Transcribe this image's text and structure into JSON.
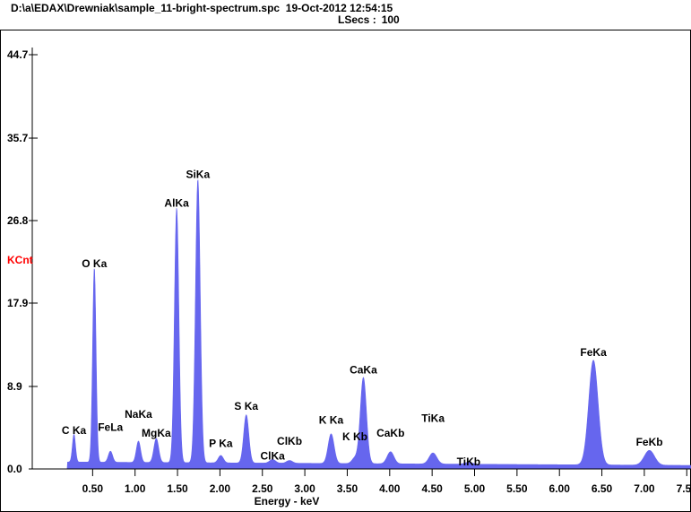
{
  "header": {
    "file_path": "D:\\a\\EDAX\\Drewniak\\sample_11-bright-spectrum.spc",
    "datetime": "19-Oct-2012 12:54:15",
    "lsecs_label": "LSecs :",
    "lsecs_value": "100"
  },
  "colors": {
    "spectrum_fill": "#6666ee",
    "ylabel_color": "#ff0000",
    "axis_color": "#000000",
    "background": "#ffffff"
  },
  "chart_data": {
    "type": "area",
    "xlabel": "Energy - keV",
    "ylabel": "KCnt",
    "xlim": [
      0.0,
      7.55
    ],
    "ylim": [
      0.0,
      44.7
    ],
    "x_ticks": [
      0.5,
      1.0,
      1.5,
      2.0,
      2.5,
      3.0,
      3.5,
      4.0,
      4.5,
      5.0,
      5.5,
      6.0,
      6.5,
      7.0,
      7.5
    ],
    "x_tick_labels": [
      "0.50",
      "1.00",
      "1.50",
      "2.00",
      "2.50",
      "3.00",
      "3.50",
      "4.00",
      "4.50",
      "5.00",
      "5.50",
      "6.00",
      "6.50",
      "7.00",
      "7.50"
    ],
    "y_ticks": [
      0.0,
      8.9,
      17.9,
      26.8,
      35.7,
      44.7
    ],
    "y_tick_labels": [
      "0.0",
      "8.9",
      "17.9",
      "26.8",
      "35.7",
      "44.7"
    ],
    "background_level": 0.6,
    "peaks": [
      {
        "label": "C Ka",
        "energy": 0.28,
        "height": 3.0,
        "width": 0.018
      },
      {
        "label": "O Ka",
        "energy": 0.52,
        "height": 21.0,
        "width": 0.02
      },
      {
        "label": "FeLa",
        "energy": 0.71,
        "height": 1.2,
        "width": 0.025
      },
      {
        "label": "NaKa",
        "energy": 1.04,
        "height": 2.3,
        "width": 0.025
      },
      {
        "label": "MgKa",
        "energy": 1.25,
        "height": 2.6,
        "width": 0.028
      },
      {
        "label": "AlKa",
        "energy": 1.49,
        "height": 27.5,
        "width": 0.026
      },
      {
        "label": "SiKa",
        "energy": 1.74,
        "height": 30.6,
        "width": 0.028
      },
      {
        "label": "P Ka",
        "energy": 2.01,
        "height": 0.8,
        "width": 0.03
      },
      {
        "label": "S Ka",
        "energy": 2.31,
        "height": 5.2,
        "width": 0.03
      },
      {
        "label": "ClKa",
        "energy": 2.62,
        "height": 0.4,
        "width": 0.035
      },
      {
        "label": "ClKb",
        "energy": 2.82,
        "height": 0.3,
        "width": 0.035
      },
      {
        "label": "K Ka",
        "energy": 3.31,
        "height": 3.2,
        "width": 0.035
      },
      {
        "label": "K Kb",
        "energy": 3.59,
        "height": 0.6,
        "width": 0.035
      },
      {
        "label": "CaKa",
        "energy": 3.69,
        "height": 9.3,
        "width": 0.036
      },
      {
        "label": "CaKb",
        "energy": 4.01,
        "height": 1.3,
        "width": 0.04
      },
      {
        "label": "TiKa",
        "energy": 4.51,
        "height": 1.2,
        "width": 0.045
      },
      {
        "label": "TiKb",
        "energy": 4.93,
        "height": 0.2,
        "width": 0.045
      },
      {
        "label": "FeKa",
        "energy": 6.4,
        "height": 11.3,
        "width": 0.055
      },
      {
        "label": "FeKb",
        "energy": 7.06,
        "height": 1.6,
        "width": 0.06
      }
    ],
    "annotations": [
      {
        "label": "C Ka",
        "x": 0.28,
        "y": 3.6
      },
      {
        "label": "O Ka",
        "x": 0.52,
        "y": 21.6
      },
      {
        "label": "FeLa",
        "x": 0.71,
        "y": 3.9
      },
      {
        "label": "NaKa",
        "x": 1.04,
        "y": 5.3
      },
      {
        "label": "MgKa",
        "x": 1.25,
        "y": 3.3
      },
      {
        "label": "AlKa",
        "x": 1.49,
        "y": 28.1
      },
      {
        "label": "SiKa",
        "x": 1.74,
        "y": 31.2
      },
      {
        "label": "P Ka",
        "x": 2.01,
        "y": 2.2
      },
      {
        "label": "S Ka",
        "x": 2.31,
        "y": 6.2
      },
      {
        "label": "ClKa",
        "x": 2.62,
        "y": 0.8
      },
      {
        "label": "ClKb",
        "x": 2.82,
        "y": 2.4
      },
      {
        "label": "K Ka",
        "x": 3.31,
        "y": 4.7
      },
      {
        "label": "K Kb",
        "x": 3.59,
        "y": 2.9
      },
      {
        "label": "CaKa",
        "x": 3.69,
        "y": 10.1
      },
      {
        "label": "CaKb",
        "x": 4.01,
        "y": 3.3
      },
      {
        "label": "TiKa",
        "x": 4.51,
        "y": 4.9
      },
      {
        "label": "TiKb",
        "x": 4.93,
        "y": 0.2
      },
      {
        "label": "FeKa",
        "x": 6.4,
        "y": 12.0
      },
      {
        "label": "FeKb",
        "x": 7.06,
        "y": 2.3
      }
    ]
  }
}
